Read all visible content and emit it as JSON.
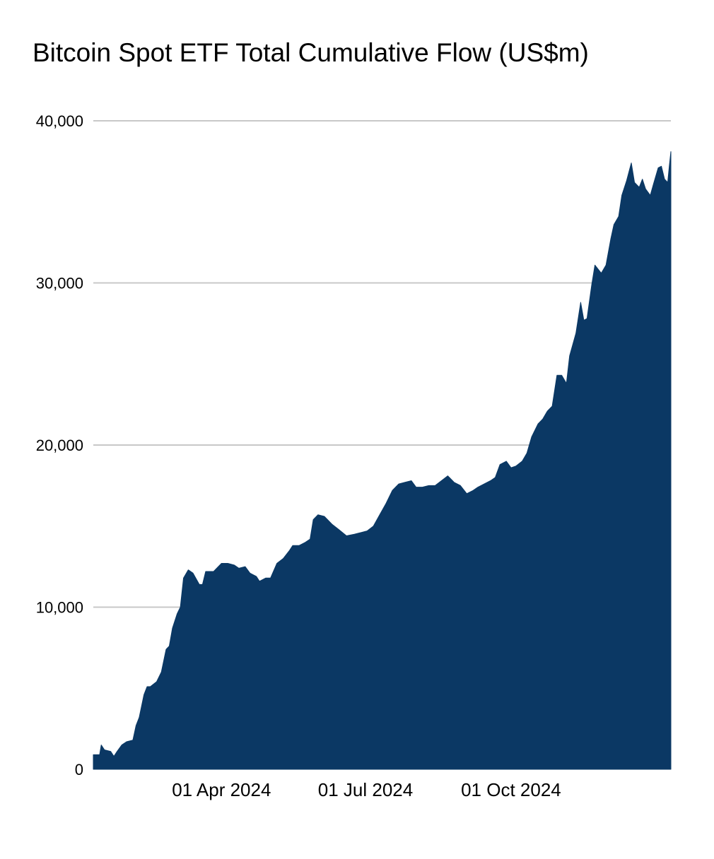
{
  "chart_data": {
    "type": "area",
    "title": "Bitcoin Spot ETF Total Cumulative Flow (US$m)",
    "xlabel": "",
    "ylabel": "",
    "x_range": [
      "2024-01-11",
      "2025-01-10"
    ],
    "ylim": [
      0,
      40000
    ],
    "y_ticks": [
      {
        "value": 0,
        "label": "0"
      },
      {
        "value": 10000,
        "label": "10,000"
      },
      {
        "value": 20000,
        "label": "20,000"
      },
      {
        "value": 30000,
        "label": "30,000"
      },
      {
        "value": 40000,
        "label": "40,000"
      }
    ],
    "x_ticks": [
      {
        "date": "2024-04-01",
        "label": "01 Apr 2024"
      },
      {
        "date": "2024-07-01",
        "label": "01 Jul 2024"
      },
      {
        "date": "2024-10-01",
        "label": "01 Oct 2024"
      }
    ],
    "grid": true,
    "legend": "none",
    "fill_color": "#0b3864",
    "grid_color": "#c8c8c8",
    "series": [
      {
        "points": [
          [
            "2024-01-11",
            900
          ],
          [
            "2024-01-15",
            900
          ],
          [
            "2024-01-16",
            1500
          ],
          [
            "2024-01-18",
            1200
          ],
          [
            "2024-01-22",
            1100
          ],
          [
            "2024-01-24",
            800
          ],
          [
            "2024-01-26",
            1100
          ],
          [
            "2024-01-29",
            1500
          ],
          [
            "2024-02-01",
            1700
          ],
          [
            "2024-02-05",
            1800
          ],
          [
            "2024-02-07",
            2700
          ],
          [
            "2024-02-09",
            3200
          ],
          [
            "2024-02-12",
            4600
          ],
          [
            "2024-02-14",
            5100
          ],
          [
            "2024-02-16",
            5100
          ],
          [
            "2024-02-20",
            5400
          ],
          [
            "2024-02-23",
            6000
          ],
          [
            "2024-02-26",
            7400
          ],
          [
            "2024-02-28",
            7600
          ],
          [
            "2024-03-01",
            8700
          ],
          [
            "2024-03-04",
            9600
          ],
          [
            "2024-03-06",
            10000
          ],
          [
            "2024-03-08",
            11800
          ],
          [
            "2024-03-11",
            12300
          ],
          [
            "2024-03-14",
            12100
          ],
          [
            "2024-03-18",
            11400
          ],
          [
            "2024-03-20",
            11400
          ],
          [
            "2024-03-22",
            12200
          ],
          [
            "2024-03-27",
            12200
          ],
          [
            "2024-04-01",
            12700
          ],
          [
            "2024-04-05",
            12700
          ],
          [
            "2024-04-09",
            12600
          ],
          [
            "2024-04-12",
            12400
          ],
          [
            "2024-04-16",
            12500
          ],
          [
            "2024-04-19",
            12100
          ],
          [
            "2024-04-23",
            11900
          ],
          [
            "2024-04-25",
            11600
          ],
          [
            "2024-04-29",
            11800
          ],
          [
            "2024-05-02",
            11800
          ],
          [
            "2024-05-06",
            12700
          ],
          [
            "2024-05-10",
            13000
          ],
          [
            "2024-05-14",
            13500
          ],
          [
            "2024-05-16",
            13800
          ],
          [
            "2024-05-20",
            13800
          ],
          [
            "2024-05-24",
            14000
          ],
          [
            "2024-05-27",
            14200
          ],
          [
            "2024-05-29",
            15400
          ],
          [
            "2024-06-01",
            15700
          ],
          [
            "2024-06-05",
            15600
          ],
          [
            "2024-06-10",
            15100
          ],
          [
            "2024-06-14",
            14800
          ],
          [
            "2024-06-19",
            14400
          ],
          [
            "2024-06-24",
            14500
          ],
          [
            "2024-06-28",
            14600
          ],
          [
            "2024-07-02",
            14700
          ],
          [
            "2024-07-06",
            15000
          ],
          [
            "2024-07-10",
            15700
          ],
          [
            "2024-07-14",
            16400
          ],
          [
            "2024-07-18",
            17200
          ],
          [
            "2024-07-22",
            17600
          ],
          [
            "2024-07-26",
            17700
          ],
          [
            "2024-07-30",
            17800
          ],
          [
            "2024-08-02",
            17400
          ],
          [
            "2024-08-06",
            17400
          ],
          [
            "2024-08-10",
            17500
          ],
          [
            "2024-08-14",
            17500
          ],
          [
            "2024-08-18",
            17800
          ],
          [
            "2024-08-22",
            18100
          ],
          [
            "2024-08-26",
            17700
          ],
          [
            "2024-08-30",
            17500
          ],
          [
            "2024-09-03",
            17000
          ],
          [
            "2024-09-07",
            17200
          ],
          [
            "2024-09-10",
            17400
          ],
          [
            "2024-09-14",
            17600
          ],
          [
            "2024-09-18",
            17800
          ],
          [
            "2024-09-21",
            18000
          ],
          [
            "2024-09-24",
            18800
          ],
          [
            "2024-09-28",
            19000
          ],
          [
            "2024-10-01",
            18600
          ],
          [
            "2024-10-04",
            18700
          ],
          [
            "2024-10-08",
            19000
          ],
          [
            "2024-10-11",
            19500
          ],
          [
            "2024-10-14",
            20500
          ],
          [
            "2024-10-18",
            21300
          ],
          [
            "2024-10-21",
            21600
          ],
          [
            "2024-10-24",
            22100
          ],
          [
            "2024-10-27",
            22400
          ],
          [
            "2024-10-30",
            24300
          ],
          [
            "2024-11-02",
            24300
          ],
          [
            "2024-11-05",
            23800
          ],
          [
            "2024-11-07",
            25500
          ],
          [
            "2024-11-11",
            26900
          ],
          [
            "2024-11-14",
            28800
          ],
          [
            "2024-11-16",
            27700
          ],
          [
            "2024-11-18",
            27800
          ],
          [
            "2024-11-21",
            29900
          ],
          [
            "2024-11-23",
            31100
          ],
          [
            "2024-11-27",
            30600
          ],
          [
            "2024-11-30",
            31100
          ],
          [
            "2024-12-03",
            32700
          ],
          [
            "2024-12-05",
            33600
          ],
          [
            "2024-12-08",
            34100
          ],
          [
            "2024-12-10",
            35400
          ],
          [
            "2024-12-13",
            36300
          ],
          [
            "2024-12-16",
            37400
          ],
          [
            "2024-12-18",
            36200
          ],
          [
            "2024-12-21",
            35900
          ],
          [
            "2024-12-23",
            36400
          ],
          [
            "2024-12-25",
            35800
          ],
          [
            "2024-12-28",
            35400
          ],
          [
            "2024-12-30",
            36100
          ],
          [
            "2025-01-02",
            37100
          ],
          [
            "2025-01-04",
            37200
          ],
          [
            "2025-01-06",
            36400
          ],
          [
            "2025-01-08",
            36200
          ],
          [
            "2025-01-09",
            37200
          ],
          [
            "2025-01-10",
            38100
          ]
        ]
      }
    ]
  }
}
